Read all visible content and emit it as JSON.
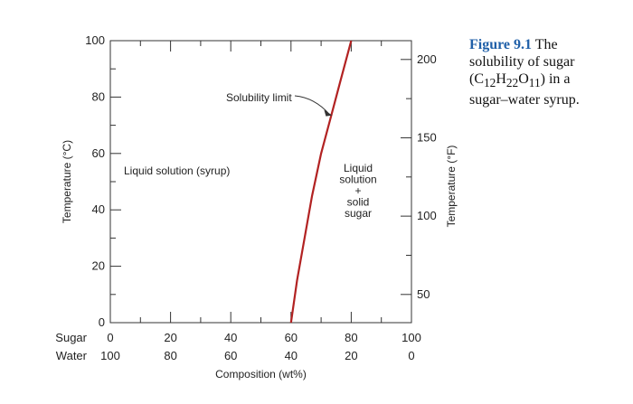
{
  "chart_data": {
    "type": "line",
    "title": "",
    "x_label": "Composition (wt%)",
    "x_rows": [
      {
        "name": "Sugar",
        "ticks": [
          "0",
          "20",
          "40",
          "60",
          "80",
          "100"
        ]
      },
      {
        "name": "Water",
        "ticks": [
          "100",
          "80",
          "60",
          "40",
          "20",
          "0"
        ]
      }
    ],
    "xlim": [
      0,
      100
    ],
    "y_label": "Temperature (°C)",
    "ylim": [
      0,
      100
    ],
    "y_ticks": [
      "0",
      "20",
      "40",
      "60",
      "80",
      "100"
    ],
    "y2_label": "Temperature (°F)",
    "y2_ticks": [
      "50",
      "100",
      "150",
      "200"
    ],
    "y2_tick_values": [
      50,
      100,
      150,
      200
    ],
    "series": [
      {
        "name": "",
        "color": "#b22222",
        "points": [
          {
            "x": 60,
            "y": 0
          },
          {
            "x": 62,
            "y": 15
          },
          {
            "x": 64.5,
            "y": 30
          },
          {
            "x": 67,
            "y": 45
          },
          {
            "x": 70,
            "y": 60
          },
          {
            "x": 73,
            "y": 72
          },
          {
            "x": 76.5,
            "y": 86
          },
          {
            "x": 80,
            "y": 100
          }
        ]
      }
    ],
    "annotations": {
      "solubility_limit": "Solubility limit",
      "liquid_solution": "Liquid solution (syrup)",
      "two_phase": [
        "Liquid",
        "solution",
        "+",
        "solid",
        "sugar"
      ]
    },
    "grid": false
  },
  "caption": {
    "figure_number": "Figure 9.1",
    "text_lines": [
      "The",
      "solubility of sugar",
      "in a",
      "sugar–water syrup."
    ],
    "formula": {
      "open": "(C",
      "sub1": "12",
      "mid1": "H",
      "sub2": "22",
      "mid2": "O",
      "sub3": "11",
      "close": ")"
    }
  }
}
